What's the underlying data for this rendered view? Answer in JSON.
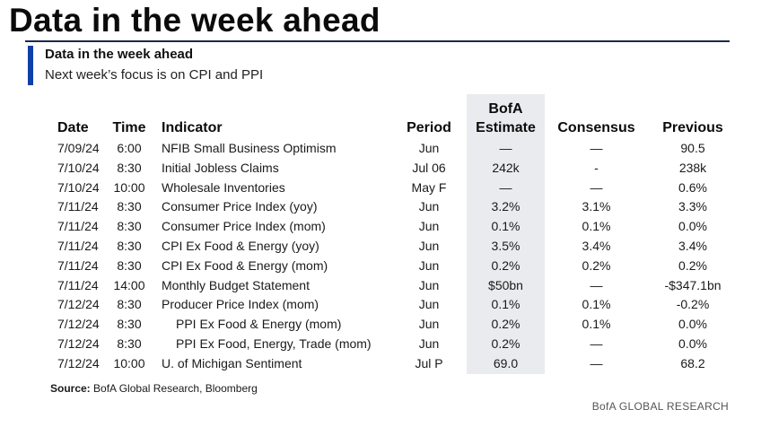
{
  "banner_title": "Data in the week ahead",
  "subtitle": "Data in the week ahead",
  "caption": "Next week’s focus is on CPI and PPI",
  "headers": {
    "date": "Date",
    "time": "Time",
    "indicator": "Indicator",
    "period": "Period",
    "estimate_line1": "BofA",
    "estimate_line2": "Estimate",
    "consensus": "Consensus",
    "previous": "Previous"
  },
  "rows": [
    {
      "date": "7/09/24",
      "time": "6:00",
      "indicator": "NFIB Small Business Optimism",
      "period": "Jun",
      "estimate": "—",
      "consensus": "—",
      "previous": "90.5"
    },
    {
      "date": "7/10/24",
      "time": "8:30",
      "indicator": "Initial Jobless Claims",
      "period": "Jul 06",
      "estimate": "242k",
      "consensus": "-",
      "previous": "238k"
    },
    {
      "date": "7/10/24",
      "time": "10:00",
      "indicator": "Wholesale Inventories",
      "period": "May F",
      "estimate": "—",
      "consensus": "—",
      "previous": "0.6%"
    },
    {
      "date": "7/11/24",
      "time": "8:30",
      "indicator": "Consumer Price Index (yoy)",
      "period": "Jun",
      "estimate": "3.2%",
      "consensus": "3.1%",
      "previous": "3.3%"
    },
    {
      "date": "7/11/24",
      "time": "8:30",
      "indicator": "Consumer Price Index (mom)",
      "period": "Jun",
      "estimate": "0.1%",
      "consensus": "0.1%",
      "previous": "0.0%"
    },
    {
      "date": "7/11/24",
      "time": "8:30",
      "indicator": "CPI Ex Food & Energy (yoy)",
      "period": "Jun",
      "estimate": "3.5%",
      "consensus": "3.4%",
      "previous": "3.4%"
    },
    {
      "date": "7/11/24",
      "time": "8:30",
      "indicator": "CPI Ex Food & Energy (mom)",
      "period": "Jun",
      "estimate": "0.2%",
      "consensus": "0.2%",
      "previous": "0.2%"
    },
    {
      "date": "7/11/24",
      "time": "14:00",
      "indicator": "Monthly Budget Statement",
      "period": "Jun",
      "estimate": "$50bn",
      "consensus": "—",
      "previous": "-$347.1bn"
    },
    {
      "date": "7/12/24",
      "time": "8:30",
      "indicator": "Producer Price Index (mom)",
      "period": "Jun",
      "estimate": "0.1%",
      "consensus": "0.1%",
      "previous": "-0.2%"
    },
    {
      "date": "7/12/24",
      "time": "8:30",
      "indicator": "PPI Ex Food & Energy (mom)",
      "period": "Jun",
      "estimate": "0.2%",
      "consensus": "0.1%",
      "previous": "0.0%",
      "indent": true
    },
    {
      "date": "7/12/24",
      "time": "8:30",
      "indicator": "PPI Ex Food, Energy, Trade (mom)",
      "period": "Jun",
      "estimate": "0.2%",
      "consensus": "—",
      "previous": "0.0%",
      "indent": true
    },
    {
      "date": "7/12/24",
      "time": "10:00",
      "indicator": "U. of Michigan Sentiment",
      "period": "Jul P",
      "estimate": "69.0",
      "consensus": "—",
      "previous": "68.2"
    }
  ],
  "source_label": "Source:",
  "source_text": "BofA Global Research, Bloomberg",
  "brand": "BofA GLOBAL RESEARCH",
  "colors": {
    "accent": "#0f3fa8",
    "shade": "#e9ebee"
  }
}
